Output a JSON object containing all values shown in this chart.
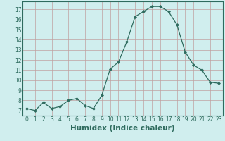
{
  "x": [
    0,
    1,
    2,
    3,
    4,
    5,
    6,
    7,
    8,
    9,
    10,
    11,
    12,
    13,
    14,
    15,
    16,
    17,
    18,
    19,
    20,
    21,
    22,
    23
  ],
  "y": [
    7.2,
    7.0,
    7.8,
    7.2,
    7.4,
    8.0,
    8.2,
    7.5,
    7.2,
    8.5,
    11.1,
    11.8,
    13.8,
    16.3,
    16.8,
    17.3,
    17.3,
    16.8,
    15.5,
    12.8,
    11.5,
    11.0,
    9.8,
    9.7
  ],
  "line_color": "#2e6b5e",
  "marker": "D",
  "marker_size": 2,
  "bg_color": "#d0eeee",
  "grid_color": "#c0a0a0",
  "xlabel": "Humidex (Indice chaleur)",
  "xlim": [
    -0.5,
    23.5
  ],
  "ylim": [
    6.5,
    17.8
  ],
  "yticks": [
    7,
    8,
    9,
    10,
    11,
    12,
    13,
    14,
    15,
    16,
    17
  ],
  "xticks": [
    0,
    1,
    2,
    3,
    4,
    5,
    6,
    7,
    8,
    9,
    10,
    11,
    12,
    13,
    14,
    15,
    16,
    17,
    18,
    19,
    20,
    21,
    22,
    23
  ],
  "tick_fontsize": 5.5,
  "xlabel_fontsize": 7.5,
  "tick_color": "#2e6b5e",
  "label_color": "#2e6b5e"
}
